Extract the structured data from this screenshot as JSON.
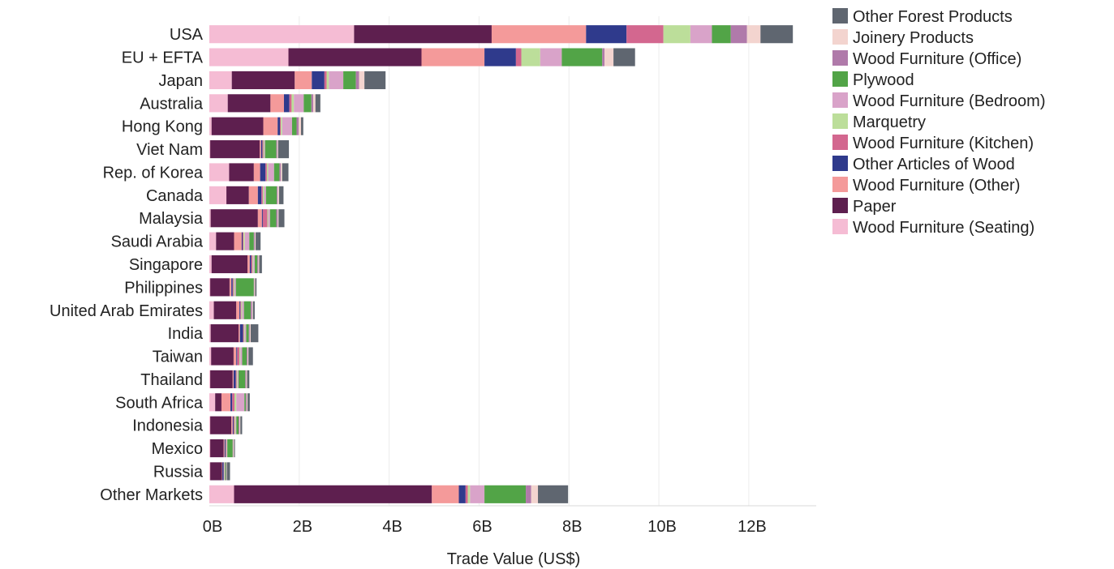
{
  "chart_data": {
    "type": "bar",
    "orientation": "horizontal",
    "stacked": true,
    "title": "",
    "xlabel": "Trade Value (US$)",
    "ylabel": "",
    "xlim": [
      0,
      13500000000
    ],
    "x_ticks": [
      0,
      2000000000,
      4000000000,
      6000000000,
      8000000000,
      10000000000,
      12000000000
    ],
    "x_tick_labels": [
      "0B",
      "2B",
      "4B",
      "6B",
      "8B",
      "10B",
      "12B"
    ],
    "grid": true,
    "legend_position": "top-right",
    "categories": [
      "USA",
      "EU + EFTA",
      "Japan",
      "Australia",
      "Hong Kong",
      "Viet Nam",
      "Rep. of Korea",
      "Canada",
      "Malaysia",
      "Saudi Arabia",
      "Singapore",
      "Philippines",
      "United Arab Emirates",
      "India",
      "Taiwan",
      "Thailand",
      "South Africa",
      "Indonesia",
      "Mexico",
      "Russia",
      "Other Markets"
    ],
    "series": [
      {
        "name": "Wood Furniture (Seating)",
        "color": "#f5bcd4",
        "values": [
          3220000000.0,
          1760000000.0,
          500000000.0,
          410000000.0,
          50000000.0,
          20000000.0,
          440000000.0,
          380000000.0,
          30000000.0,
          150000000.0,
          50000000.0,
          20000000.0,
          100000000.0,
          30000000.0,
          40000000.0,
          20000000.0,
          130000000.0,
          20000000.0,
          20000000.0,
          20000000.0,
          550000000.0
        ]
      },
      {
        "name": "Paper",
        "color": "#5e1f4f",
        "values": [
          3060000000.0,
          2960000000.0,
          1400000000.0,
          950000000.0,
          1150000000.0,
          1100000000.0,
          550000000.0,
          500000000.0,
          1050000000.0,
          400000000.0,
          800000000.0,
          430000000.0,
          500000000.0,
          620000000.0,
          500000000.0,
          500000000.0,
          140000000.0,
          470000000.0,
          300000000.0,
          260000000.0,
          4400000000.0
        ]
      },
      {
        "name": "Wood Furniture (Other)",
        "color": "#f49a9a",
        "values": [
          2100000000.0,
          1400000000.0,
          380000000.0,
          300000000.0,
          320000000.0,
          30000000.0,
          140000000.0,
          200000000.0,
          90000000.0,
          170000000.0,
          50000000.0,
          40000000.0,
          70000000.0,
          30000000.0,
          60000000.0,
          20000000.0,
          200000000.0,
          30000000.0,
          20000000.0,
          10000000.0,
          600000000.0
        ]
      },
      {
        "name": "Other Articles of Wood",
        "color": "#2f3a8c",
        "values": [
          900000000.0,
          700000000.0,
          280000000.0,
          120000000.0,
          50000000.0,
          30000000.0,
          120000000.0,
          80000000.0,
          20000000.0,
          20000000.0,
          30000000.0,
          30000000.0,
          20000000.0,
          70000000.0,
          20000000.0,
          50000000.0,
          40000000.0,
          20000000.0,
          20000000.0,
          30000000.0,
          150000000.0
        ]
      },
      {
        "name": "Wood Furniture (Kitchen)",
        "color": "#d3678f",
        "values": [
          820000000.0,
          120000000.0,
          50000000.0,
          50000000.0,
          20000000.0,
          20000000.0,
          30000000.0,
          30000000.0,
          100000000.0,
          20000000.0,
          30000000.0,
          20000000.0,
          20000000.0,
          20000000.0,
          50000000.0,
          20000000.0,
          50000000.0,
          20000000.0,
          10000000.0,
          10000000.0,
          50000000.0
        ]
      },
      {
        "name": "Marquetry",
        "color": "#bcde9a",
        "values": [
          600000000.0,
          420000000.0,
          50000000.0,
          50000000.0,
          30000000.0,
          20000000.0,
          30000000.0,
          30000000.0,
          20000000.0,
          30000000.0,
          20000000.0,
          20000000.0,
          20000000.0,
          20000000.0,
          20000000.0,
          20000000.0,
          40000000.0,
          20000000.0,
          10000000.0,
          10000000.0,
          50000000.0
        ]
      },
      {
        "name": "Wood Furniture (Bedroom)",
        "color": "#d9a3c9",
        "values": [
          480000000.0,
          480000000.0,
          320000000.0,
          220000000.0,
          220000000.0,
          20000000.0,
          130000000.0,
          40000000.0,
          40000000.0,
          100000000.0,
          30000000.0,
          30000000.0,
          40000000.0,
          30000000.0,
          40000000.0,
          20000000.0,
          180000000.0,
          20000000.0,
          20000000.0,
          10000000.0,
          320000000.0
        ]
      },
      {
        "name": "Plywood",
        "color": "#52a447",
        "values": [
          420000000.0,
          900000000.0,
          280000000.0,
          170000000.0,
          100000000.0,
          250000000.0,
          120000000.0,
          240000000.0,
          140000000.0,
          100000000.0,
          60000000.0,
          400000000.0,
          150000000.0,
          60000000.0,
          100000000.0,
          150000000.0,
          30000000.0,
          50000000.0,
          120000000.0,
          20000000.0,
          920000000.0
        ]
      },
      {
        "name": "Wood Furniture (Office)",
        "color": "#b07aaa",
        "values": [
          360000000.0,
          50000000.0,
          70000000.0,
          40000000.0,
          50000000.0,
          20000000.0,
          30000000.0,
          20000000.0,
          30000000.0,
          20000000.0,
          20000000.0,
          10000000.0,
          30000000.0,
          20000000.0,
          20000000.0,
          20000000.0,
          20000000.0,
          20000000.0,
          10000000.0,
          10000000.0,
          120000000.0
        ]
      },
      {
        "name": "Joinery Products",
        "color": "#f3d4cf",
        "values": [
          300000000.0,
          200000000.0,
          120000000.0,
          50000000.0,
          50000000.0,
          20000000.0,
          30000000.0,
          30000000.0,
          20000000.0,
          20000000.0,
          20000000.0,
          20000000.0,
          20000000.0,
          20000000.0,
          20000000.0,
          20000000.0,
          20000000.0,
          20000000.0,
          20000000.0,
          10000000.0,
          150000000.0
        ]
      },
      {
        "name": "Other Forest Products",
        "color": "#5f6670",
        "values": [
          720000000.0,
          480000000.0,
          470000000.0,
          110000000.0,
          50000000.0,
          240000000.0,
          140000000.0,
          100000000.0,
          130000000.0,
          110000000.0,
          60000000.0,
          30000000.0,
          40000000.0,
          170000000.0,
          100000000.0,
          50000000.0,
          50000000.0,
          40000000.0,
          20000000.0,
          70000000.0,
          670000000.0
        ]
      }
    ]
  }
}
